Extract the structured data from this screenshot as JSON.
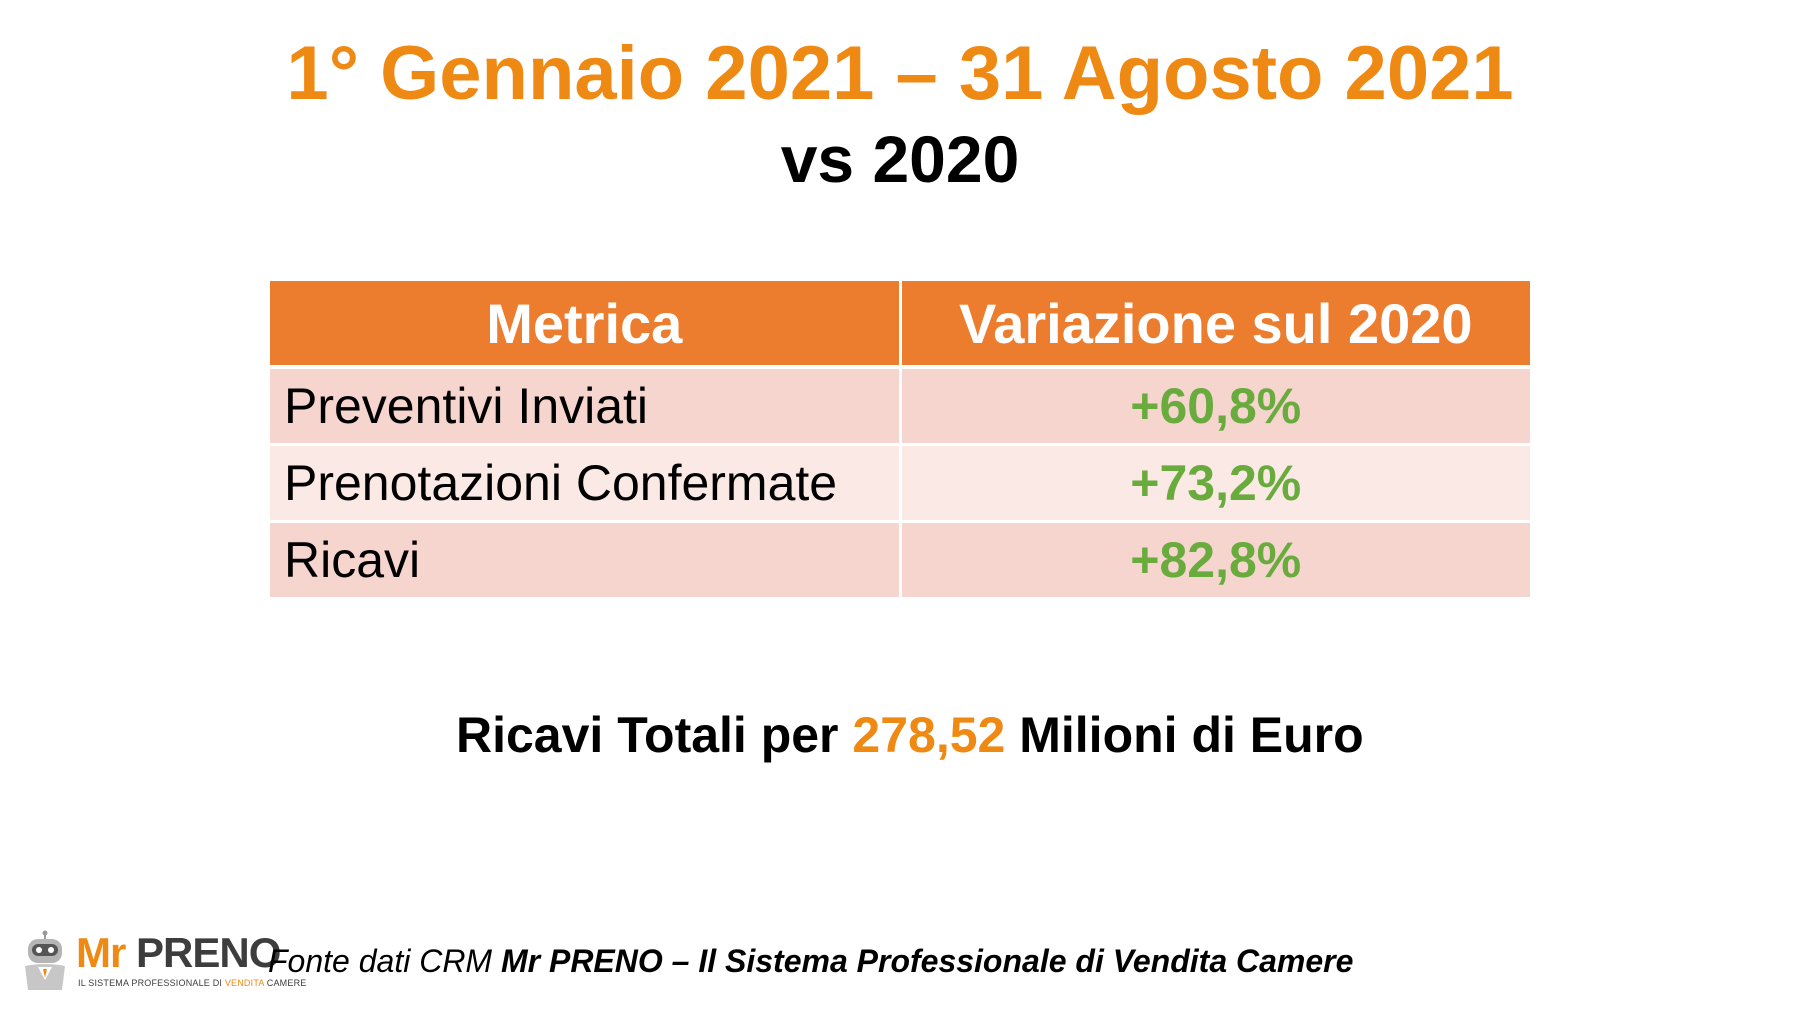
{
  "title": "1° Gennaio 2021 – 31 Agosto 2021",
  "subtitle": "vs 2020",
  "table": {
    "headers": [
      "Metrica",
      "Variazione sul 2020"
    ],
    "rows": [
      {
        "metric": "Preventivi Inviati",
        "change": "+60,8%"
      },
      {
        "metric": "Prenotazioni Confermate",
        "change": "+73,2%"
      },
      {
        "metric": "Ricavi",
        "change": "+82,8%"
      }
    ]
  },
  "summary": {
    "prefix": "Ricavi Totali per ",
    "amount": "278,52",
    "suffix": " Milioni di Euro"
  },
  "logo": {
    "mr": "Mr",
    "preno": "PRENO",
    "tagline_prefix": "IL SISTEMA PROFESSIONALE DI ",
    "tagline_highlight": "VENDITA",
    "tagline_suffix": " CAMERE",
    "icon": "robot-mascot-icon"
  },
  "footer": {
    "prefix": "Fonte dati CRM ",
    "brand": "Mr PRENO – Il Sistema Professionale di Vendita Camere"
  },
  "colors": {
    "accent_orange": "#ee8a14",
    "header_orange": "#ec7d2f",
    "positive_green": "#6aab3e",
    "row_odd": "#f7d5cf",
    "row_even": "#fbe9e6"
  }
}
